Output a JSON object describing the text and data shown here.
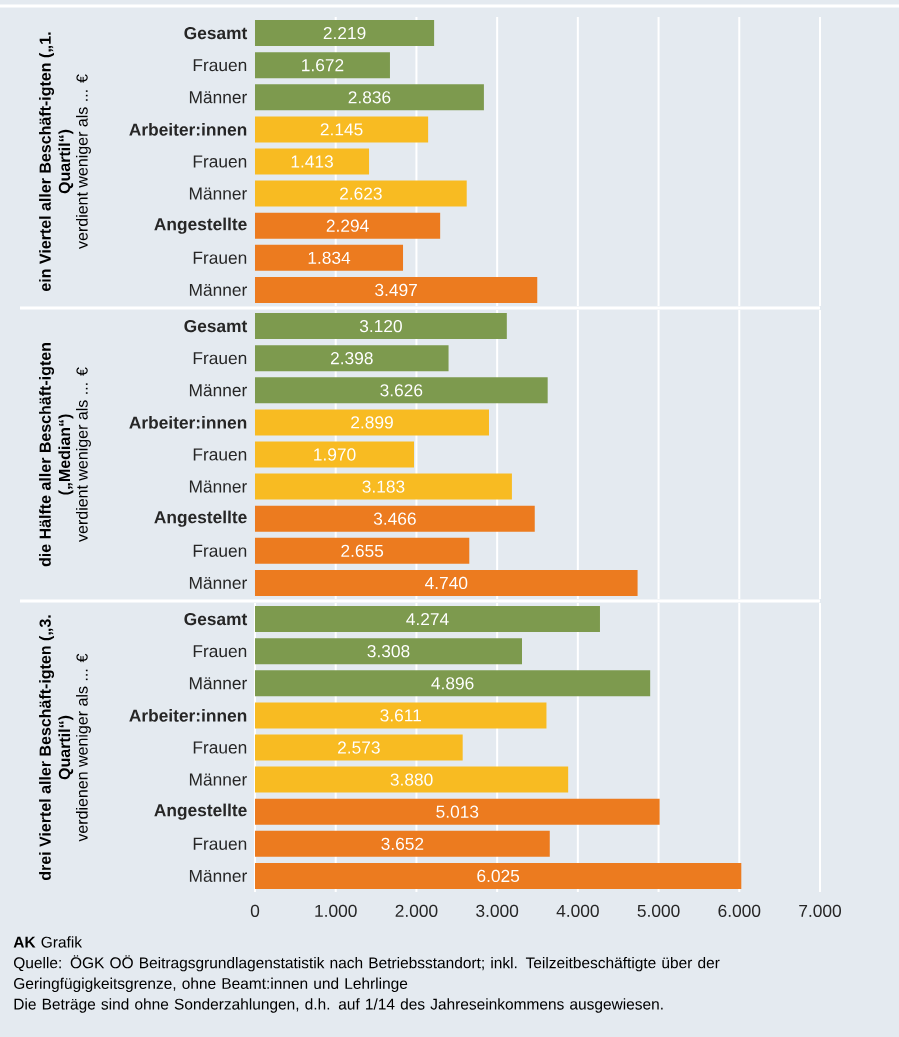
{
  "chart_data": [
    {
      "type": "bar",
      "orientation": "horizontal",
      "ylabel": "ein Viertel aller Beschäft-igten („1. Quartil“)",
      "subtitle": "verdient weniger als ... €",
      "categories": [
        "Gesamt",
        "Frauen",
        "Männer",
        "Arbeiter:innen",
        "Frauen",
        "Männer",
        "Angestellte",
        "Frauen",
        "Männer"
      ],
      "values": [
        2219,
        1672,
        2836,
        2145,
        1413,
        2623,
        2294,
        1834,
        3497
      ],
      "value_labels": [
        "2.219",
        "1.672",
        "2.836",
        "2.145",
        "1.413",
        "2.623",
        "2.294",
        "1.834",
        "3.497"
      ],
      "colors": [
        "#7d9a4e",
        "#7d9a4e",
        "#7d9a4e",
        "#f8bb22",
        "#f8bb22",
        "#f8bb22",
        "#ec7b1f",
        "#ec7b1f",
        "#ec7b1f"
      ],
      "xlim": [
        0,
        7000
      ],
      "xticks": [
        {
          "value": 1000,
          "label": null
        },
        {
          "value": 2000,
          "label": null
        },
        {
          "value": 3000,
          "label": null
        },
        {
          "value": 4000,
          "label": null
        },
        {
          "value": 5000,
          "label": null
        },
        {
          "value": 6000,
          "label": null
        },
        {
          "value": 7000,
          "label": null
        }
      ],
      "grid": "x",
      "tick_labels": "y"
    },
    {
      "type": "bar",
      "orientation": "horizontal",
      "ylabel": "die Hälfte aller Beschäft-igten („Median“)",
      "subtitle": "verdient weniger als ... €",
      "categories": [
        "Gesamt",
        "Frauen",
        "Männer",
        "Arbeiter:innen",
        "Frauen",
        "Männer",
        "Angestellte",
        "Frauen",
        "Männer"
      ],
      "values": [
        3120,
        2398,
        3626,
        2899,
        1970,
        3183,
        3466,
        2655,
        4740
      ],
      "value_labels": [
        "3.120",
        "2.398",
        "3.626",
        "2.899",
        "1.970",
        "3.183",
        "3.466",
        "2.655",
        "4.740"
      ],
      "colors": [
        "#7d9a4e",
        "#7d9a4e",
        "#7d9a4e",
        "#f8bb22",
        "#f8bb22",
        "#f8bb22",
        "#ec7b1f",
        "#ec7b1f",
        "#ec7b1f"
      ],
      "xlim": [
        0,
        7000
      ],
      "xticks": [
        {
          "value": 1000,
          "label": null
        },
        {
          "value": 2000,
          "label": null
        },
        {
          "value": 3000,
          "label": null
        },
        {
          "value": 4000,
          "label": null
        },
        {
          "value": 5000,
          "label": null
        },
        {
          "value": 6000,
          "label": null
        },
        {
          "value": 7000,
          "label": null
        }
      ],
      "grid": "x",
      "tick_labels": "y"
    },
    {
      "type": "bar",
      "orientation": "horizontal",
      "ylabel": "drei Viertel aller Beschäft-igten („3. Quartil“)",
      "subtitle": "verdienen weniger als ... €",
      "categories": [
        "Gesamt",
        "Frauen",
        "Männer",
        "Arbeiter:innen",
        "Frauen",
        "Männer",
        "Angestellte",
        "Frauen",
        "Männer"
      ],
      "values": [
        4274,
        3308,
        4896,
        3611,
        2573,
        3880,
        5013,
        3652,
        6025
      ],
      "value_labels": [
        "4.274",
        "3.308",
        "4.896",
        "3.611",
        "2.573",
        "3.880",
        "5.013",
        "3.652",
        "6.025"
      ],
      "colors": [
        "#7d9a4e",
        "#7d9a4e",
        "#7d9a4e",
        "#f8bb22",
        "#f8bb22",
        "#f8bb22",
        "#ec7b1f",
        "#ec7b1f",
        "#ec7b1f"
      ],
      "xlim": [
        0,
        7000
      ],
      "xticks": [
        0,
        {
          "value": 1000,
          "label": "1.000"
        },
        {
          "value": 2000,
          "label": "2.000"
        },
        {
          "value": 3000,
          "label": "3.000"
        },
        {
          "value": 4000,
          "label": "4.000"
        },
        {
          "value": 5000,
          "label": "5.000"
        },
        {
          "value": 6000,
          "label": "6.000"
        },
        {
          "value": 7000,
          "label": "7.000"
        }
      ],
      "grid": "x",
      "annotations": [
        "**AK** Grafik",
        "Quelle: ÖGK OÖ Beitragsgrundlagenstatistik nach Betriebsstandort; inkl. Teilzeitbeschäftigte über der Geringfügigkeitsgrenze, ohne Beamt:innen und Lehrlinge",
        "Die Beträge sind ohne Sonderzahlungen, d.h. auf 1/14 des Jahreseinkommens ausgewiesen."
      ]
    }
  ]
}
